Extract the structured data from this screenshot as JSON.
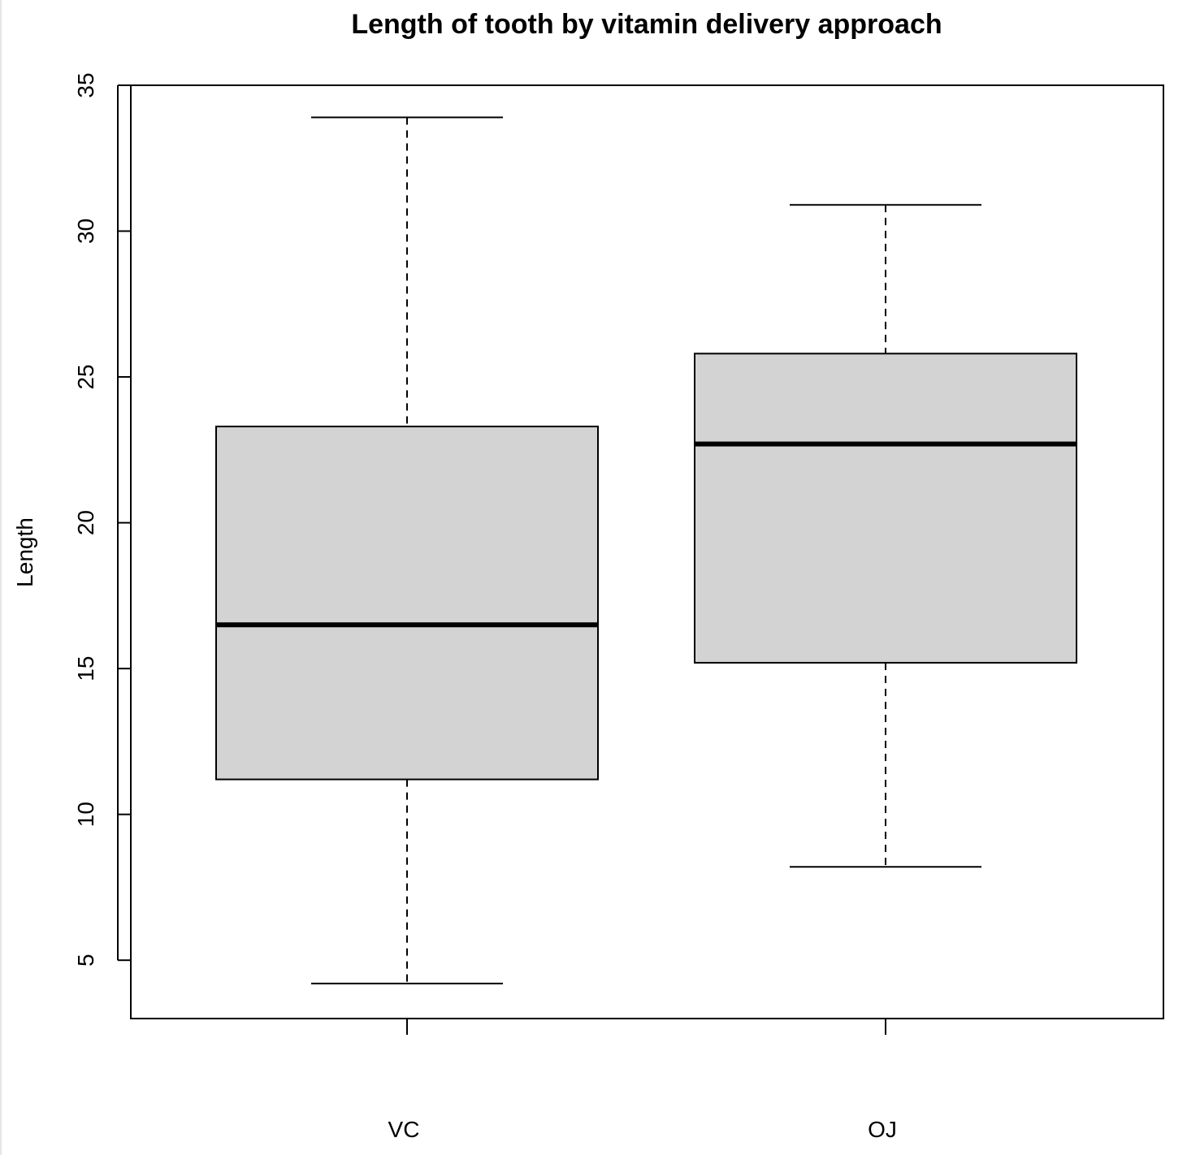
{
  "chart_data": {
    "type": "boxplot",
    "title": "Length of tooth by vitamin delivery approach",
    "xlabel": "",
    "ylabel": "Length",
    "ylim": [
      3,
      35
    ],
    "yticks": [
      "5",
      "10",
      "15",
      "20",
      "25",
      "30",
      "35"
    ],
    "categories": [
      "VC",
      "OJ"
    ],
    "boxes": [
      {
        "category": "VC",
        "min": 4.2,
        "q1": 11.2,
        "median": 16.5,
        "q3": 23.3,
        "max": 33.9
      },
      {
        "category": "OJ",
        "min": 8.2,
        "q1": 15.2,
        "median": 22.7,
        "q3": 25.8,
        "max": 30.9
      }
    ],
    "grid": false,
    "colors": {
      "box_fill": "#d3d3d3",
      "stroke": "#000000"
    }
  }
}
